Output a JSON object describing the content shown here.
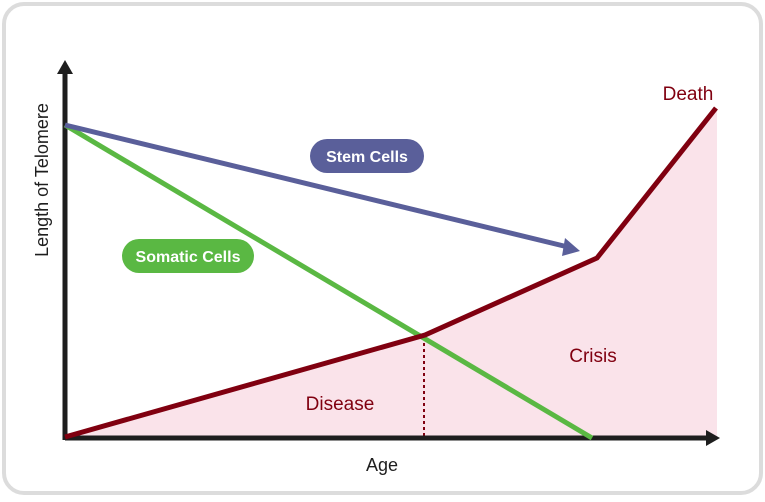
{
  "axes": {
    "x_label": "Age",
    "y_label": "Length of Telomere"
  },
  "labels": {
    "stem_cells": "Stem Cells",
    "somatic_cells": "Somatic Cells",
    "death": "Death",
    "crisis": "Crisis",
    "disease": "Disease"
  },
  "colors": {
    "stem": "#5a5f9a",
    "somatic": "#5ab843",
    "aging": "#800010",
    "region": "#fae3ea",
    "axis": "#1e1e1e",
    "frame": "#dcdcdc"
  }
}
